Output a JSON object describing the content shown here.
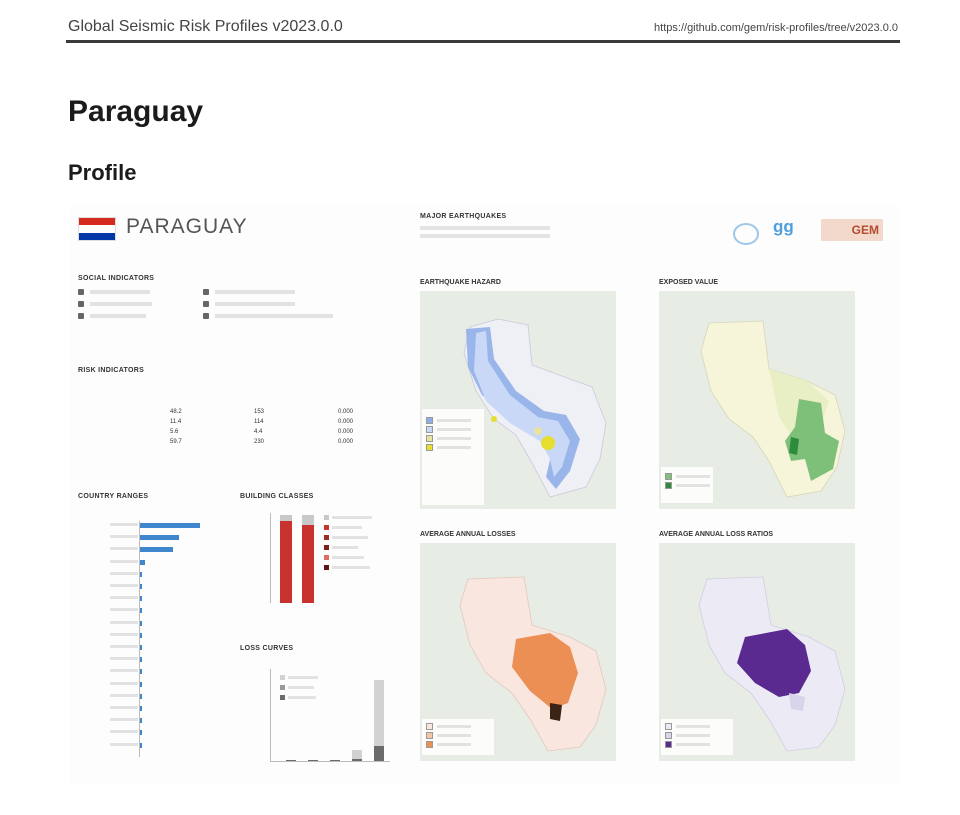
{
  "header": {
    "title": "Global Seismic Risk Profiles v2023.0.0",
    "url": "https://github.com/gem/risk-profiles/tree/v2023.0.0"
  },
  "country_title": "Paraguay",
  "section_title": "Profile",
  "profile": {
    "country_name": "PARAGUAY",
    "flag_colors": [
      "#d52b1e",
      "#ffffff",
      "#0038a8"
    ],
    "major_earthquakes": {
      "title": "MAJOR EARTHQUAKES"
    },
    "logos_caption": "",
    "social_indicators": {
      "title": "SOCIAL INDICATORS"
    },
    "risk_indicators": {
      "title": "RISK INDICATORS",
      "columns": [
        "",
        "",
        ""
      ],
      "rows": [
        {
          "label": "",
          "values": [
            "48.2",
            "153",
            "0.000"
          ]
        },
        {
          "label": "",
          "values": [
            "11.4",
            "114",
            "0.000"
          ]
        },
        {
          "label": "",
          "values": [
            "5.6",
            "4.4",
            "0.000"
          ]
        },
        {
          "label": "",
          "values": [
            "59.7",
            "230",
            "0.000"
          ]
        }
      ]
    },
    "country_ranges": {
      "title": "COUNTRY RANGES",
      "items": [
        {
          "value": 1.0
        },
        {
          "value": 0.65
        },
        {
          "value": 0.55
        },
        {
          "value": 0.08
        },
        {
          "value": 0.03
        },
        {
          "value": 0.02
        },
        {
          "value": 0.02
        },
        {
          "value": 0.02
        },
        {
          "value": 0.02
        },
        {
          "value": 0.02
        },
        {
          "value": 0.01
        },
        {
          "value": 0.01
        },
        {
          "value": 0.01
        },
        {
          "value": 0.01
        },
        {
          "value": 0.01
        },
        {
          "value": 0.01
        },
        {
          "value": 0.01
        },
        {
          "value": 0.01
        },
        {
          "value": 0.01
        }
      ]
    },
    "building_classes": {
      "title": "BUILDING CLASSES",
      "colors": [
        "#c8332f",
        "#c8c8c8"
      ]
    },
    "loss_curves": {
      "title": "LOSS CURVES",
      "values": [
        0.01,
        0.01,
        0.01,
        0.12,
        0.88
      ]
    },
    "maps": [
      {
        "title": "EARTHQUAKE HAZARD",
        "palette": [
          "#8faee8",
          "#c9d8f7",
          "#e7e3a0",
          "#e6de2e"
        ]
      },
      {
        "title": "EXPOSED VALUE",
        "palette": [
          "#f6f5d9",
          "#e8efc4",
          "#7ec07a",
          "#2e8b3e"
        ]
      },
      {
        "title": "AVERAGE ANNUAL LOSSES",
        "palette": [
          "#f8e6df",
          "#f4c4a8",
          "#eb8f55"
        ]
      },
      {
        "title": "AVERAGE ANNUAL LOSS RATIOS",
        "palette": [
          "#ecebf5",
          "#d8d4ea",
          "#5b2a90"
        ]
      }
    ]
  }
}
